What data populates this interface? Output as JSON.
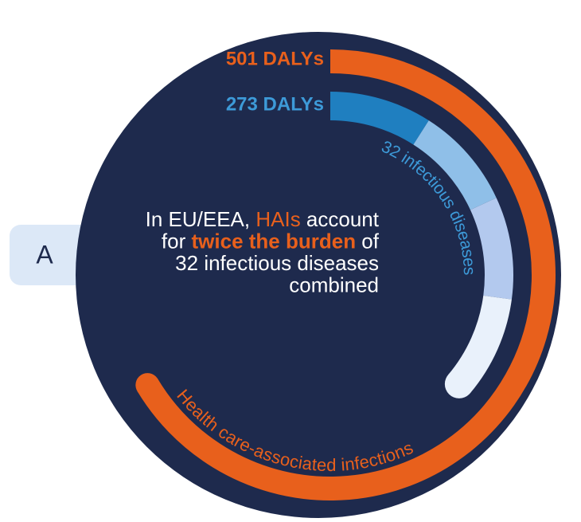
{
  "chart_data": {
    "type": "radial_bar",
    "panel_label": "A",
    "annotation_lines": [
      [
        "In EU/EEA, ",
        "HAIs",
        " account"
      ],
      [
        "for ",
        "twice the burden",
        " of"
      ],
      [
        "32 infectious diseases"
      ],
      [
        "combined"
      ]
    ],
    "series": [
      {
        "name": "Health care-associated infections",
        "color": "#e8601c",
        "values": [
          501
        ],
        "value_labels": [
          "501 DALYs"
        ]
      },
      {
        "name": "32 infectious diseases",
        "color": "#1f7fc0",
        "values": [
          273
        ],
        "value_labels": [
          "273 DALYs"
        ]
      }
    ]
  }
}
